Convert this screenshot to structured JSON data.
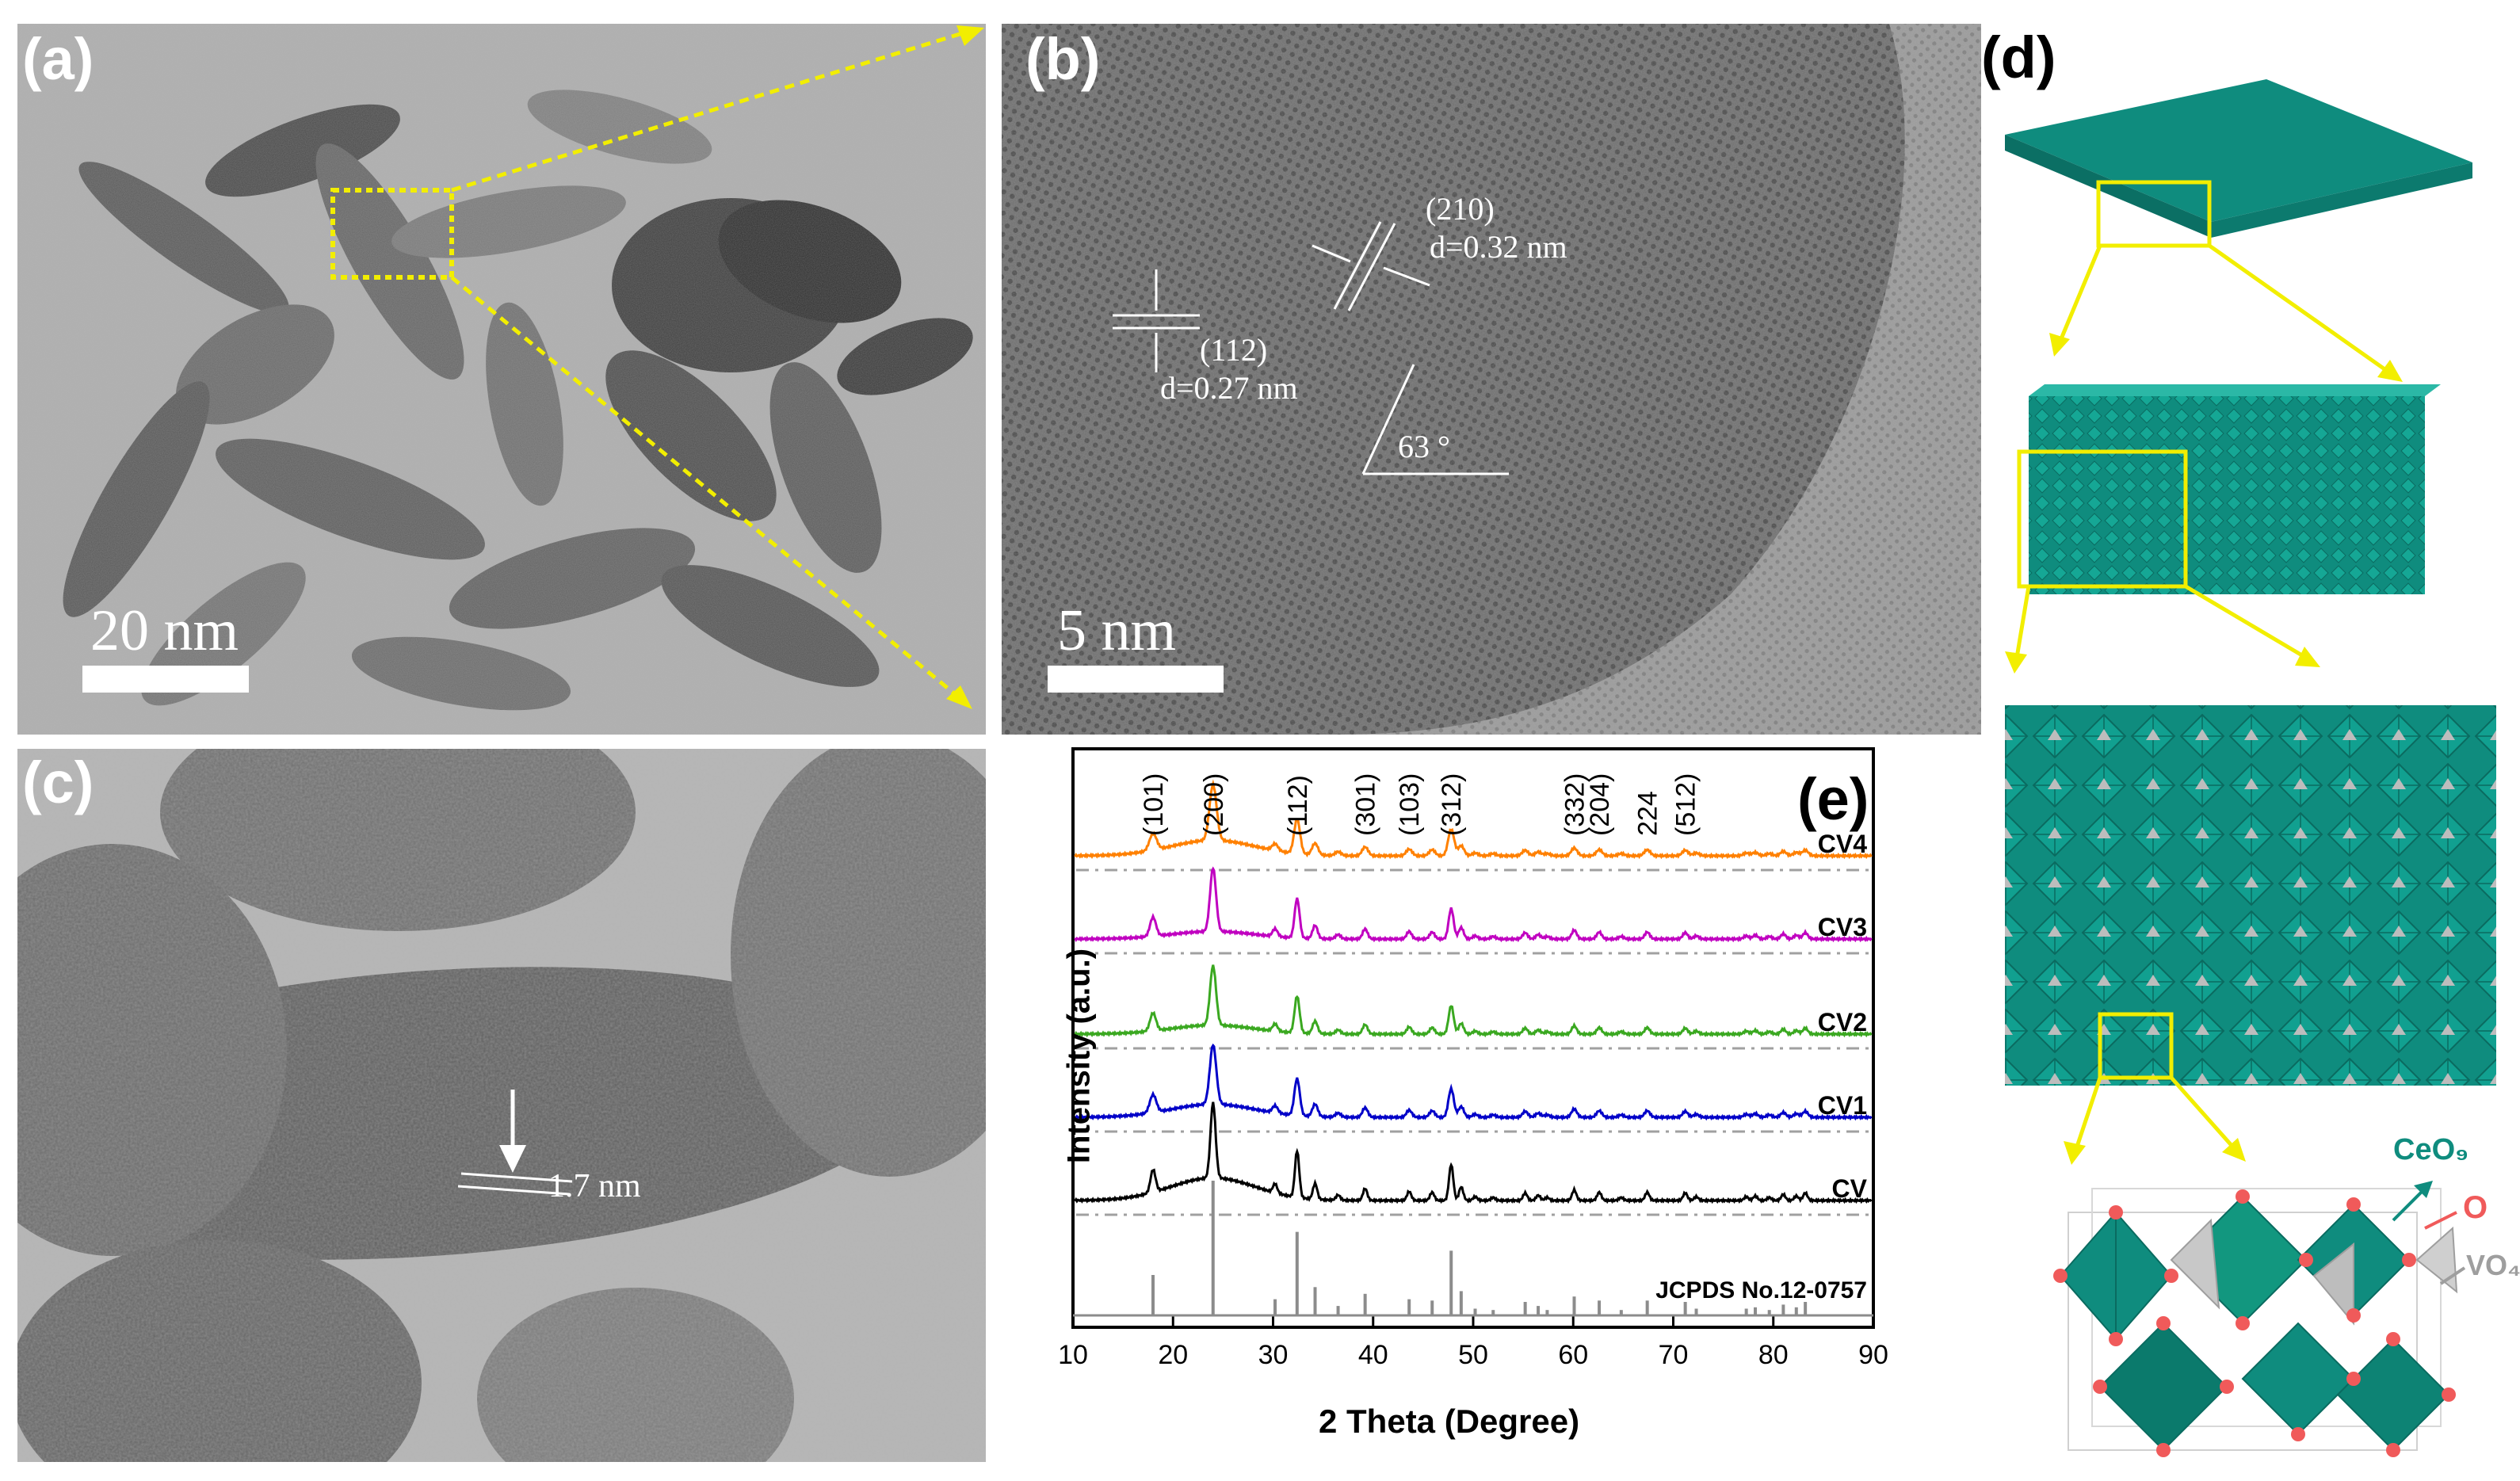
{
  "panel_a": {
    "label": "(a)",
    "scale_bar": "20 nm"
  },
  "panel_b": {
    "label": "(b)",
    "scale_bar": "5 nm",
    "annotations": {
      "plane_210": "(210)",
      "d_210": "d=0.32 nm",
      "plane_112": "(112)",
      "d_112": "d=0.27 nm",
      "angle": "63 °"
    }
  },
  "panel_c": {
    "label": "(c)",
    "annotation": "1.7 nm"
  },
  "panel_d": {
    "label": "(d)",
    "legend": {
      "ceo9": "CeO₉",
      "o": "O",
      "vo4": "VO₄"
    },
    "colors": {
      "ceo9": "#0f8c7e",
      "o": "#f05a5a",
      "vo4": "#9e9e9e",
      "highlight": "#f2ee00"
    }
  },
  "panel_e": {
    "label": "(e)",
    "chart_data": {
      "type": "line",
      "xlabel": "2 Theta (Degree)",
      "ylabel": "Intensity (a.u.)",
      "xlim": [
        10,
        90
      ],
      "xticks": [
        10,
        20,
        30,
        40,
        50,
        60,
        70,
        80,
        90
      ],
      "peak_labels": [
        {
          "hkl": "(101)",
          "x": 18.0
        },
        {
          "hkl": "(200)",
          "x": 24.0
        },
        {
          "hkl": "(112)",
          "x": 32.4
        },
        {
          "hkl": "(301)",
          "x": 39.2
        },
        {
          "hkl": "(103)",
          "x": 43.6
        },
        {
          "hkl": "(312)",
          "x": 47.8
        },
        {
          "hkl": "(332)",
          "x": 60.1
        },
        {
          "hkl": "(204)",
          "x": 62.6
        },
        {
          "hkl": "224",
          "x": 67.4
        },
        {
          "hkl": "(512)",
          "x": 71.2
        }
      ],
      "series": [
        {
          "name": "CV4",
          "color": "#ff8000"
        },
        {
          "name": "CV3",
          "color": "#c000c0"
        },
        {
          "name": "CV2",
          "color": "#3aa820"
        },
        {
          "name": "CV1",
          "color": "#0000c8"
        },
        {
          "name": "CV",
          "color": "#000000"
        }
      ],
      "reference": {
        "name": "JCPDS No.12-0757",
        "color": "#8c8c8c",
        "peaks": [
          {
            "x": 18.0,
            "h": 0.3
          },
          {
            "x": 24.0,
            "h": 1.0
          },
          {
            "x": 30.2,
            "h": 0.12
          },
          {
            "x": 32.4,
            "h": 0.62
          },
          {
            "x": 34.2,
            "h": 0.21
          },
          {
            "x": 36.5,
            "h": 0.07
          },
          {
            "x": 39.2,
            "h": 0.16
          },
          {
            "x": 43.6,
            "h": 0.12
          },
          {
            "x": 45.9,
            "h": 0.11
          },
          {
            "x": 47.8,
            "h": 0.48
          },
          {
            "x": 48.8,
            "h": 0.18
          },
          {
            "x": 50.2,
            "h": 0.05
          },
          {
            "x": 52.0,
            "h": 0.04
          },
          {
            "x": 55.2,
            "h": 0.1
          },
          {
            "x": 56.5,
            "h": 0.07
          },
          {
            "x": 57.4,
            "h": 0.04
          },
          {
            "x": 60.1,
            "h": 0.14
          },
          {
            "x": 62.6,
            "h": 0.11
          },
          {
            "x": 64.8,
            "h": 0.04
          },
          {
            "x": 67.4,
            "h": 0.11
          },
          {
            "x": 71.2,
            "h": 0.1
          },
          {
            "x": 72.3,
            "h": 0.05
          },
          {
            "x": 77.3,
            "h": 0.05
          },
          {
            "x": 78.2,
            "h": 0.06
          },
          {
            "x": 79.6,
            "h": 0.04
          },
          {
            "x": 81.0,
            "h": 0.08
          },
          {
            "x": 82.3,
            "h": 0.06
          },
          {
            "x": 83.2,
            "h": 0.1
          }
        ]
      }
    }
  }
}
